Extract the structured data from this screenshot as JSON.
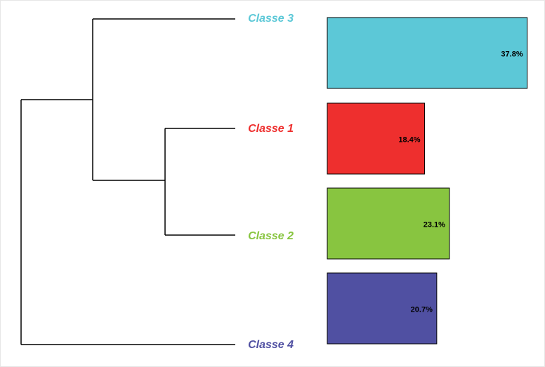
{
  "chart_data": {
    "type": "bar",
    "categories": [
      "Classe 3",
      "Classe 1",
      "Classe 2",
      "Classe 4"
    ],
    "values": [
      37.8,
      18.4,
      23.1,
      20.7
    ],
    "value_labels": [
      "37.8%",
      "18.4%",
      "23.1%",
      "20.7%"
    ],
    "colors": [
      "#5cc8d7",
      "#ee2f2e",
      "#88c540",
      "#5050a2"
    ]
  }
}
